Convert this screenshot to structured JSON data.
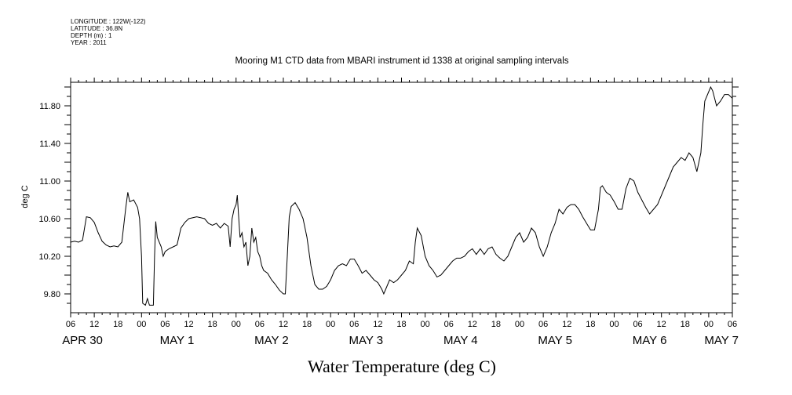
{
  "header": {
    "lines": [
      "LONGITUDE : 122W(-122)",
      "LATITUDE : 36.8N",
      "DEPTH (m) : 1",
      "YEAR : 2011"
    ]
  },
  "chart_data": {
    "type": "line",
    "title": "Mooring M1 CTD data from MBARI instrument id 1338 at original sampling intervals",
    "xlabel": "Water Temperature (deg C)",
    "ylabel": "deg C",
    "x_unit": "hours since Apr 30 06:00",
    "xlim": [
      0,
      168
    ],
    "ylim": [
      9.6,
      12.05
    ],
    "yticks": [
      "9.80",
      "10.20",
      "10.60",
      "11.00",
      "11.40",
      "11.80"
    ],
    "ytick_values": [
      9.8,
      10.2,
      10.6,
      11.0,
      11.4,
      11.8
    ],
    "xtick_hour_labels": [
      "06",
      "12",
      "18",
      "00",
      "06",
      "12",
      "18",
      "00",
      "06",
      "12",
      "18",
      "00",
      "06",
      "12",
      "18",
      "00",
      "06",
      "12",
      "18",
      "00",
      "06",
      "12",
      "18",
      "00",
      "06",
      "12",
      "18",
      "00",
      "06"
    ],
    "day_labels": [
      {
        "label": "APR 30",
        "at": 3
      },
      {
        "label": "MAY  1",
        "at": 27
      },
      {
        "label": "MAY  2",
        "at": 51
      },
      {
        "label": "MAY  3",
        "at": 75
      },
      {
        "label": "MAY  4",
        "at": 99
      },
      {
        "label": "MAY  5",
        "at": 123
      },
      {
        "label": "MAY  6",
        "at": 147
      },
      {
        "label": "MAY 7",
        "at": 168
      }
    ],
    "grid": false,
    "series": [
      {
        "color": "#000000",
        "points": [
          [
            0,
            10.35
          ],
          [
            1,
            10.36
          ],
          [
            2,
            10.35
          ],
          [
            3,
            10.37
          ],
          [
            4,
            10.62
          ],
          [
            5,
            10.61
          ],
          [
            6,
            10.56
          ],
          [
            7,
            10.45
          ],
          [
            8,
            10.36
          ],
          [
            9,
            10.32
          ],
          [
            10,
            10.3
          ],
          [
            11,
            10.31
          ],
          [
            12,
            10.3
          ],
          [
            13,
            10.35
          ],
          [
            14,
            10.72
          ],
          [
            14.5,
            10.88
          ],
          [
            15,
            10.78
          ],
          [
            16,
            10.8
          ],
          [
            17,
            10.72
          ],
          [
            17.5,
            10.6
          ],
          [
            18,
            10.2
          ],
          [
            18.3,
            9.7
          ],
          [
            19,
            9.68
          ],
          [
            19.5,
            9.75
          ],
          [
            20,
            9.68
          ],
          [
            21,
            9.68
          ],
          [
            21.3,
            10.2
          ],
          [
            21.6,
            10.57
          ],
          [
            22,
            10.4
          ],
          [
            23,
            10.3
          ],
          [
            23.5,
            10.2
          ],
          [
            24,
            10.25
          ],
          [
            25,
            10.28
          ],
          [
            26,
            10.3
          ],
          [
            27,
            10.32
          ],
          [
            28,
            10.5
          ],
          [
            29,
            10.56
          ],
          [
            30,
            10.6
          ],
          [
            32,
            10.62
          ],
          [
            34,
            10.6
          ],
          [
            35,
            10.55
          ],
          [
            36,
            10.53
          ],
          [
            37,
            10.55
          ],
          [
            38,
            10.5
          ],
          [
            39,
            10.55
          ],
          [
            40,
            10.52
          ],
          [
            40.5,
            10.3
          ],
          [
            41,
            10.6
          ],
          [
            41.5,
            10.7
          ],
          [
            42,
            10.75
          ],
          [
            42.3,
            10.85
          ],
          [
            42.6,
            10.65
          ],
          [
            43,
            10.4
          ],
          [
            43.5,
            10.45
          ],
          [
            44,
            10.3
          ],
          [
            44.5,
            10.35
          ],
          [
            45,
            10.1
          ],
          [
            45.5,
            10.2
          ],
          [
            46,
            10.5
          ],
          [
            46.5,
            10.35
          ],
          [
            47,
            10.4
          ],
          [
            47.5,
            10.25
          ],
          [
            48,
            10.2
          ],
          [
            48.5,
            10.1
          ],
          [
            49,
            10.05
          ],
          [
            50,
            10.02
          ],
          [
            51,
            9.95
          ],
          [
            52,
            9.9
          ],
          [
            53,
            9.84
          ],
          [
            54,
            9.8
          ],
          [
            54.5,
            9.8
          ],
          [
            55,
            10.2
          ],
          [
            55.5,
            10.62
          ],
          [
            56,
            10.73
          ],
          [
            57,
            10.77
          ],
          [
            58,
            10.7
          ],
          [
            59,
            10.6
          ],
          [
            60,
            10.4
          ],
          [
            61,
            10.1
          ],
          [
            62,
            9.9
          ],
          [
            63,
            9.85
          ],
          [
            64,
            9.85
          ],
          [
            65,
            9.88
          ],
          [
            66,
            9.95
          ],
          [
            67,
            10.05
          ],
          [
            68,
            10.1
          ],
          [
            69,
            10.12
          ],
          [
            70,
            10.1
          ],
          [
            71,
            10.17
          ],
          [
            72,
            10.17
          ],
          [
            73,
            10.1
          ],
          [
            74,
            10.02
          ],
          [
            75,
            10.05
          ],
          [
            76,
            10.0
          ],
          [
            77,
            9.95
          ],
          [
            78,
            9.92
          ],
          [
            79,
            9.85
          ],
          [
            79.5,
            9.8
          ],
          [
            80,
            9.85
          ],
          [
            81,
            9.95
          ],
          [
            82,
            9.92
          ],
          [
            83,
            9.95
          ],
          [
            84,
            10.0
          ],
          [
            85,
            10.05
          ],
          [
            86,
            10.15
          ],
          [
            87,
            10.12
          ],
          [
            87.5,
            10.35
          ],
          [
            88,
            10.5
          ],
          [
            89,
            10.42
          ],
          [
            90,
            10.2
          ],
          [
            91,
            10.1
          ],
          [
            92,
            10.05
          ],
          [
            93,
            9.98
          ],
          [
            94,
            10.0
          ],
          [
            95,
            10.05
          ],
          [
            96,
            10.1
          ],
          [
            97,
            10.15
          ],
          [
            98,
            10.18
          ],
          [
            99,
            10.18
          ],
          [
            100,
            10.2
          ],
          [
            101,
            10.25
          ],
          [
            102,
            10.28
          ],
          [
            103,
            10.22
          ],
          [
            104,
            10.28
          ],
          [
            105,
            10.22
          ],
          [
            106,
            10.28
          ],
          [
            107,
            10.3
          ],
          [
            108,
            10.22
          ],
          [
            109,
            10.18
          ],
          [
            110,
            10.15
          ],
          [
            111,
            10.2
          ],
          [
            112,
            10.3
          ],
          [
            113,
            10.4
          ],
          [
            114,
            10.45
          ],
          [
            115,
            10.35
          ],
          [
            116,
            10.4
          ],
          [
            117,
            10.5
          ],
          [
            118,
            10.45
          ],
          [
            119,
            10.3
          ],
          [
            120,
            10.2
          ],
          [
            121,
            10.3
          ],
          [
            122,
            10.45
          ],
          [
            123,
            10.55
          ],
          [
            124,
            10.7
          ],
          [
            125,
            10.65
          ],
          [
            126,
            10.72
          ],
          [
            127,
            10.75
          ],
          [
            128,
            10.75
          ],
          [
            129,
            10.7
          ],
          [
            130,
            10.62
          ],
          [
            131,
            10.55
          ],
          [
            132,
            10.48
          ],
          [
            133,
            10.48
          ],
          [
            134,
            10.7
          ],
          [
            134.5,
            10.93
          ],
          [
            135,
            10.95
          ],
          [
            136,
            10.88
          ],
          [
            137,
            10.85
          ],
          [
            138,
            10.78
          ],
          [
            139,
            10.7
          ],
          [
            140,
            10.7
          ],
          [
            141,
            10.92
          ],
          [
            142,
            11.03
          ],
          [
            143,
            11.0
          ],
          [
            144,
            10.88
          ],
          [
            145,
            10.8
          ],
          [
            146,
            10.72
          ],
          [
            147,
            10.65
          ],
          [
            148,
            10.7
          ],
          [
            149,
            10.75
          ],
          [
            150,
            10.85
          ],
          [
            151,
            10.95
          ],
          [
            152,
            11.05
          ],
          [
            153,
            11.15
          ],
          [
            154,
            11.2
          ],
          [
            155,
            11.25
          ],
          [
            156,
            11.22
          ],
          [
            157,
            11.3
          ],
          [
            158,
            11.25
          ],
          [
            159,
            11.1
          ],
          [
            160,
            11.3
          ],
          [
            160.5,
            11.6
          ],
          [
            161,
            11.85
          ],
          [
            162,
            11.95
          ],
          [
            162.5,
            12.0
          ],
          [
            163,
            11.96
          ],
          [
            164,
            11.8
          ],
          [
            165,
            11.85
          ],
          [
            166,
            11.92
          ],
          [
            167,
            11.92
          ],
          [
            168,
            11.88
          ]
        ]
      }
    ]
  }
}
